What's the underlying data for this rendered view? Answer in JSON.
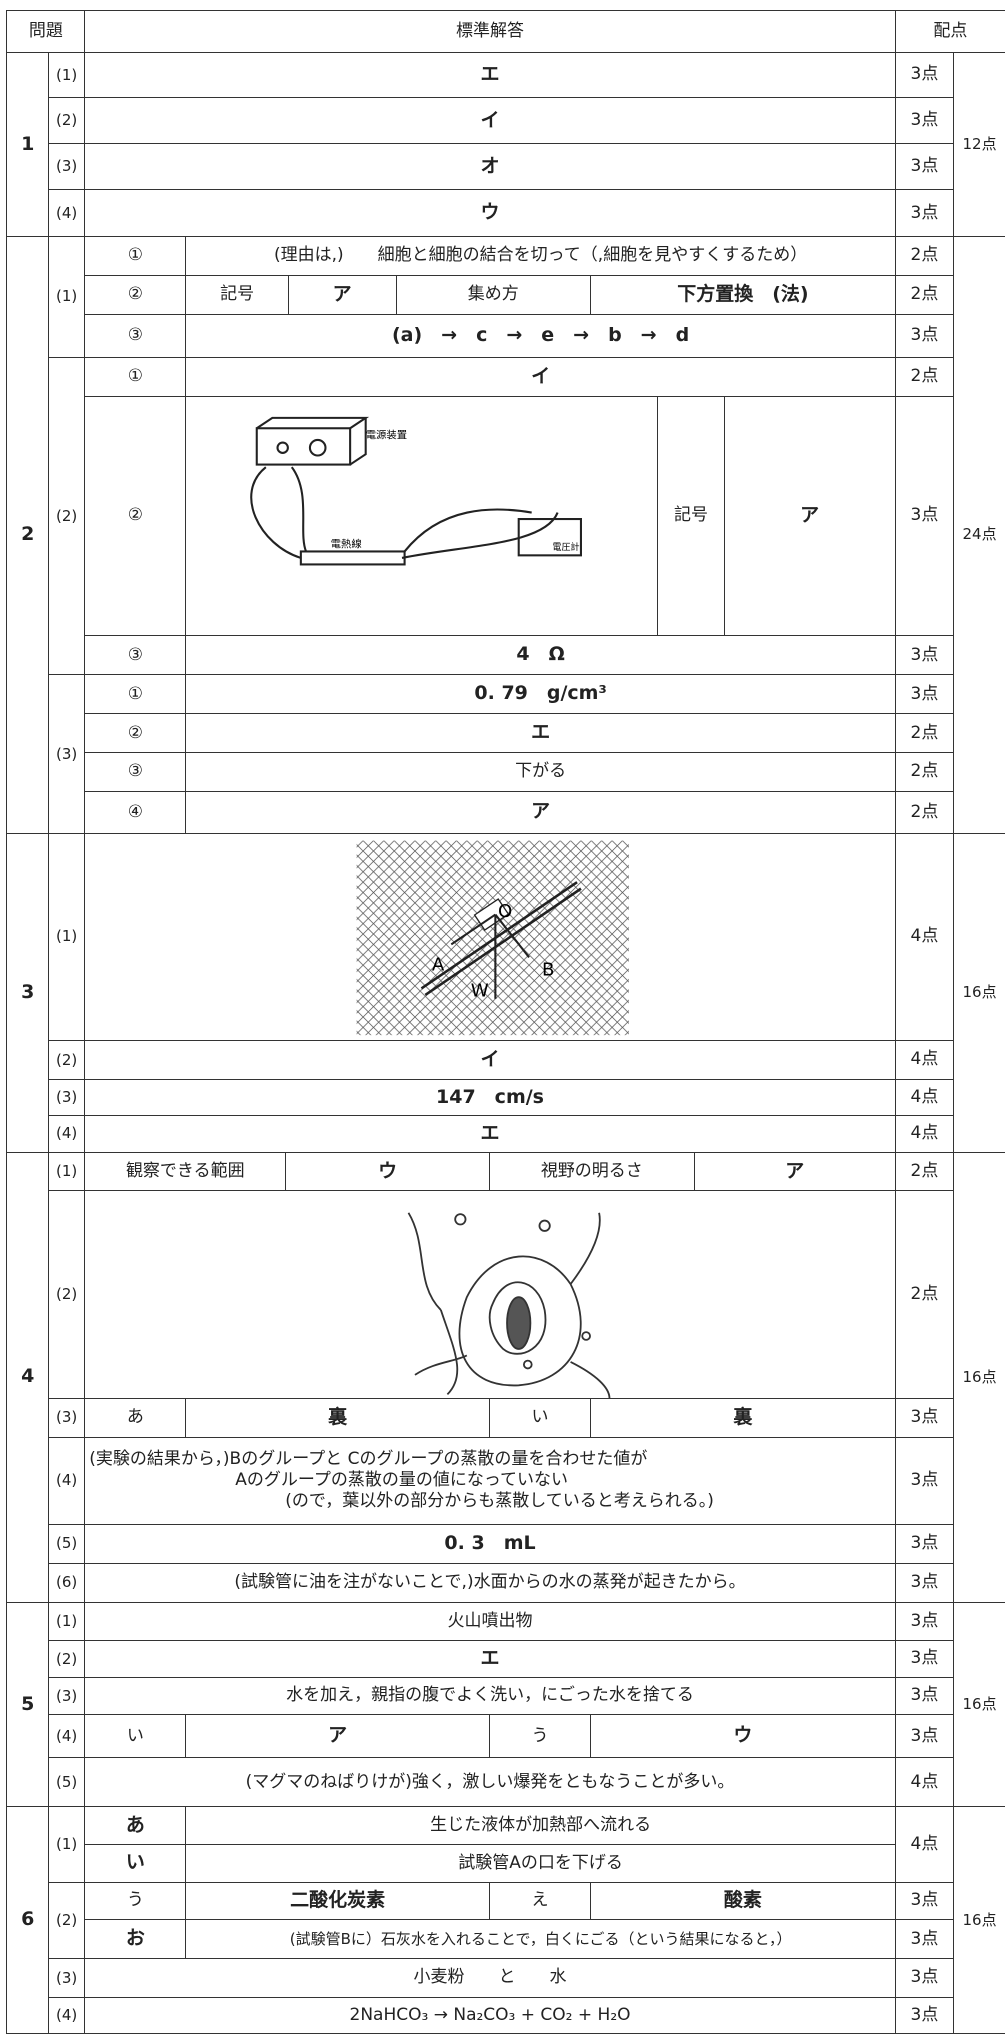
{
  "header": {
    "question": "問題",
    "answer": "標準解答",
    "score": "配点"
  },
  "q1": {
    "number": "1",
    "total": "12点",
    "items": [
      {
        "label": "(1)",
        "answer": "エ",
        "score": "3点"
      },
      {
        "label": "(2)",
        "answer": "イ",
        "score": "3点"
      },
      {
        "label": "(3)",
        "answer": "オ",
        "score": "3点"
      },
      {
        "label": "(4)",
        "answer": "ウ",
        "score": "3点"
      }
    ]
  },
  "q2": {
    "number": "2",
    "total": "24点",
    "p1": {
      "label": "(1)",
      "parts": [
        {
          "label": "①",
          "answer": "(理由は,)　　細胞と細胞の結合を切って（,細胞を見やすくするため）",
          "score": "2点"
        },
        {
          "label": "②",
          "cells": [
            "記号",
            "ア",
            "集め方",
            "下方置換　(法)"
          ],
          "score": "2点"
        },
        {
          "label": "③",
          "answer": "(a)　→　c　→　e　→　b　→　d",
          "score": "3点"
        }
      ]
    },
    "p2": {
      "label": "(2)",
      "parts": [
        {
          "label": "①",
          "answer": "イ",
          "score": "2点"
        },
        {
          "label": "②",
          "cells": [
            "記号",
            "ア"
          ],
          "score": "3点",
          "figure_labels": [
            "電源装置",
            "電熱線",
            "電圧計"
          ]
        },
        {
          "label": "③",
          "answer": "4　Ω",
          "score": "3点"
        }
      ]
    },
    "p3": {
      "label": "(3)",
      "parts": [
        {
          "label": "①",
          "answer": "0. 79　g/cm³",
          "score": "3点"
        },
        {
          "label": "②",
          "answer": "エ",
          "score": "2点"
        },
        {
          "label": "③",
          "answer": "下がる",
          "score": "2点"
        },
        {
          "label": "④",
          "answer": "ア",
          "score": "2点"
        }
      ]
    }
  },
  "q3": {
    "number": "3",
    "total": "16点",
    "items": [
      {
        "label": "(1)",
        "score": "4点",
        "figure_labels": [
          "A",
          "B",
          "W",
          "O"
        ]
      },
      {
        "label": "(2)",
        "answer": "イ",
        "score": "4点"
      },
      {
        "label": "(3)",
        "answer": "147　cm/s",
        "score": "4点"
      },
      {
        "label": "(4)",
        "answer": "エ",
        "score": "4点"
      }
    ]
  },
  "q4": {
    "number": "4",
    "total": "16点",
    "items": [
      {
        "label": "(1)",
        "cells": [
          "観察できる範囲",
          "ウ",
          "視野の明るさ",
          "ア"
        ],
        "score": "2点"
      },
      {
        "label": "(2)",
        "score": "2点"
      },
      {
        "label": "(3)",
        "cells": [
          "あ",
          "裏",
          "い",
          "裏"
        ],
        "score": "3点"
      },
      {
        "label": "(4)",
        "lines": [
          "(実験の結果から，)Bのグループと Cのグループの蒸散の量を合わせた値が",
          "Aのグループの蒸散の量の値になっていない",
          "(ので，葉以外の部分からも蒸散していると考えられる。)"
        ],
        "score": "3点"
      },
      {
        "label": "(5)",
        "answer": "0. 3　mL",
        "score": "3点"
      },
      {
        "label": "(6)",
        "answer": "(試験管に油を注がないことで,)水面からの水の蒸発が起きたから。",
        "score": "3点"
      }
    ]
  },
  "q5": {
    "number": "5",
    "total": "16点",
    "items": [
      {
        "label": "(1)",
        "answer": "火山噴出物",
        "score": "3点"
      },
      {
        "label": "(2)",
        "answer": "エ",
        "score": "3点"
      },
      {
        "label": "(3)",
        "answer": "水を加え，親指の腹でよく洗い，にごった水を捨てる",
        "score": "3点"
      },
      {
        "label": "(4)",
        "cells": [
          "い",
          "ア",
          "う",
          "ウ"
        ],
        "score": "3点"
      },
      {
        "label": "(5)",
        "answer": "(マグマのねばりけが)強く，激しい爆発をともなうことが多い。",
        "score": "4点"
      }
    ]
  },
  "q6": {
    "number": "6",
    "total": "16点",
    "p1": {
      "label": "(1)",
      "score": "4点",
      "parts": [
        {
          "label": "あ",
          "answer": "生じた液体が加熱部へ流れる"
        },
        {
          "label": "い",
          "answer": "試験管Aの口を下げる"
        }
      ]
    },
    "p2": {
      "label": "(2)",
      "parts": [
        {
          "cells": [
            "う",
            "二酸化炭素",
            "え",
            "酸素"
          ],
          "score": "3点"
        },
        {
          "label": "お",
          "answer": "(試験管Bに）石灰水を入れることで，白くにごる（という結果になると，）",
          "score": "3点"
        }
      ]
    },
    "items": [
      {
        "label": "(3)",
        "answer": "小麦粉　　と　　水",
        "score": "3点"
      },
      {
        "label": "(4)",
        "answer": "2NaHCO₃ → Na₂CO₃ + CO₂ + H₂O",
        "score": "3点"
      }
    ]
  }
}
